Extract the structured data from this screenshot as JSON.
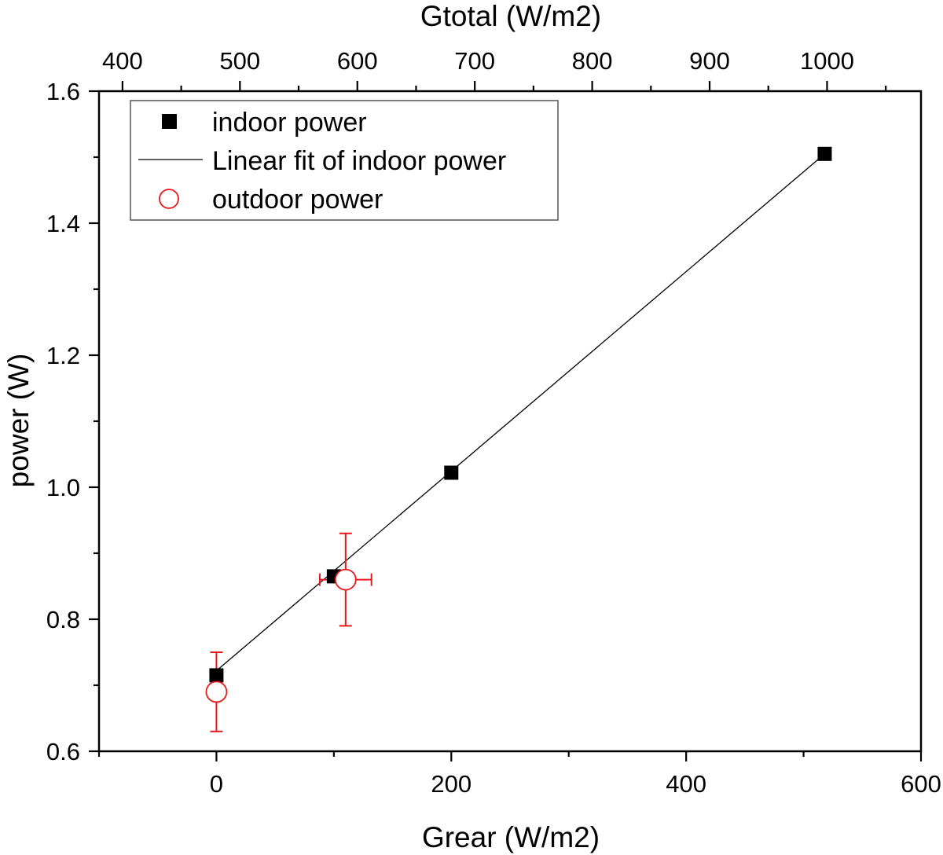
{
  "chart_data": {
    "type": "scatter",
    "xlabel": "Grear (W/m2)",
    "x2label": "Gtotal (W/m2)",
    "ylabel": "power (W)",
    "xlim": [
      -100,
      600
    ],
    "ylim": [
      0.6,
      1.6
    ],
    "x2lim": [
      380,
      1080
    ],
    "x_ticks": [
      0,
      200,
      400,
      600
    ],
    "x_tick_labels": [
      "0",
      "200",
      "400",
      "600"
    ],
    "x_minor_ticks": [
      -100,
      100,
      300,
      500
    ],
    "x2_ticks": [
      400,
      500,
      600,
      700,
      800,
      900,
      1000
    ],
    "x2_tick_labels": [
      "400",
      "500",
      "600",
      "700",
      "800",
      "900",
      "1000"
    ],
    "x2_minor_ticks": [
      450,
      550,
      650,
      750,
      850,
      950,
      1050
    ],
    "y_ticks": [
      0.6,
      0.8,
      1.0,
      1.2,
      1.4,
      1.6
    ],
    "y_tick_labels": [
      "0.6",
      "0.8",
      "1.0",
      "1.2",
      "1.4",
      "1.6"
    ],
    "y_minor_ticks": [
      0.7,
      0.9,
      1.1,
      1.3,
      1.5
    ],
    "grid": false,
    "legend_position": "top-left",
    "series": [
      {
        "name": "indoor power",
        "kind": "scatter",
        "marker": "filled-square",
        "color": "#000000",
        "x": [
          0,
          100,
          200,
          518
        ],
        "y": [
          0.715,
          0.865,
          1.022,
          1.505
        ]
      },
      {
        "name": "Linear fit of indoor power",
        "kind": "line",
        "color": "#000000",
        "x": [
          0,
          518
        ],
        "y": [
          0.722,
          1.505
        ]
      },
      {
        "name": "outdoor power",
        "kind": "scatter",
        "marker": "open-circle",
        "color": "#e8191c",
        "x": [
          0,
          110
        ],
        "y": [
          0.69,
          0.86
        ],
        "y_err": [
          0.06,
          0.07
        ],
        "x_err": [
          0,
          22
        ]
      }
    ]
  }
}
